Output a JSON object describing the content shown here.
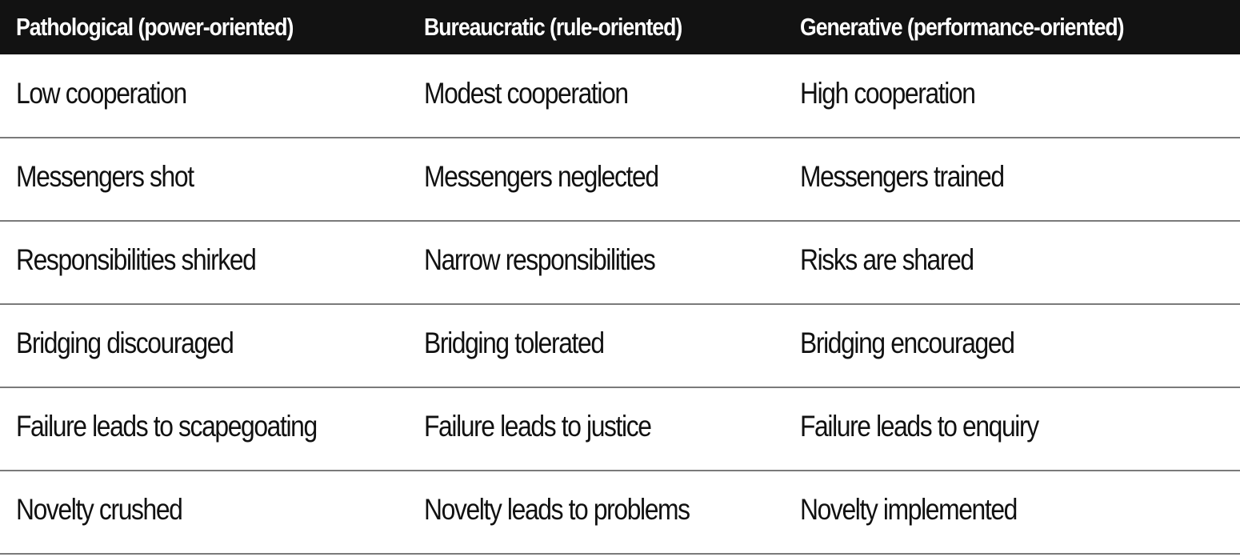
{
  "table": {
    "headers": [
      "Pathological (power-oriented)",
      "Bureaucratic (rule-oriented)",
      "Generative (performance-oriented)"
    ],
    "rows": [
      [
        "Low cooperation",
        "Modest cooperation",
        "High cooperation"
      ],
      [
        "Messengers shot",
        "Messengers neglected",
        "Messengers trained"
      ],
      [
        "Responsibilities shirked",
        "Narrow responsibilities",
        "Risks are shared"
      ],
      [
        "Bridging discouraged",
        "Bridging tolerated",
        "Bridging encouraged"
      ],
      [
        "Failure leads to scapegoating",
        "Failure leads to justice",
        "Failure leads to enquiry"
      ],
      [
        "Novelty crushed",
        "Novelty leads to problems",
        "Novelty implemented"
      ]
    ]
  },
  "colors": {
    "header_bg": "#121212",
    "header_text": "#ffffff",
    "body_text": "#111111",
    "row_divider": "#7a7a7a"
  }
}
